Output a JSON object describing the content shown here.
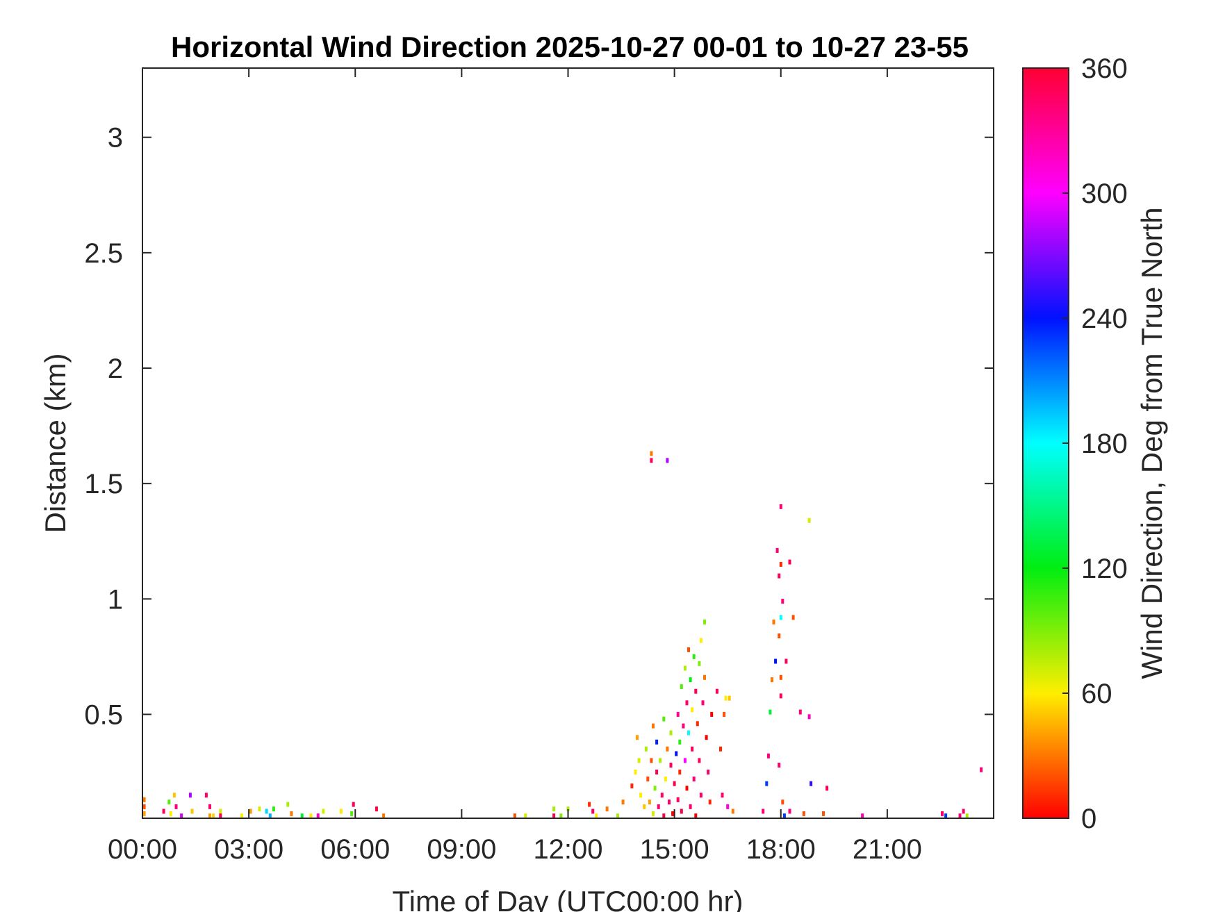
{
  "chart_data": {
    "type": "heatmap",
    "title": "Horizontal Wind Direction 2025-10-27 00-01 to 10-27 23-55",
    "xlabel": "Time of Day (UTC00:00 hr)",
    "ylabel": "Distance (km)",
    "colorbar_label": "Wind Direction, Deg from True North",
    "xlim": [
      0,
      24
    ],
    "ylim": [
      0.05,
      3.3
    ],
    "clim": [
      0,
      360
    ],
    "x_unit": "hours UTC",
    "y_unit": "km",
    "colormap": "hsv",
    "grid": false,
    "x_ticks": [
      {
        "value": 0,
        "label": "00:00"
      },
      {
        "value": 3,
        "label": "03:00"
      },
      {
        "value": 6,
        "label": "06:00"
      },
      {
        "value": 9,
        "label": "09:00"
      },
      {
        "value": 12,
        "label": "12:00"
      },
      {
        "value": 15,
        "label": "15:00"
      },
      {
        "value": 18,
        "label": "18:00"
      },
      {
        "value": 21,
        "label": "21:00"
      }
    ],
    "y_ticks": [
      {
        "value": 0.5,
        "label": "0.5"
      },
      {
        "value": 1,
        "label": "1"
      },
      {
        "value": 1.5,
        "label": "1.5"
      },
      {
        "value": 2,
        "label": "2"
      },
      {
        "value": 2.5,
        "label": "2.5"
      },
      {
        "value": 3,
        "label": "3"
      }
    ],
    "colorbar_ticks": [
      {
        "value": 0,
        "label": "0"
      },
      {
        "value": 60,
        "label": "60"
      },
      {
        "value": 120,
        "label": "120"
      },
      {
        "value": 180,
        "label": "180"
      },
      {
        "value": 240,
        "label": "240"
      },
      {
        "value": 300,
        "label": "300"
      },
      {
        "value": 360,
        "label": "360"
      }
    ],
    "colorbar_stops": [
      {
        "value": 0,
        "color": "#ff0000"
      },
      {
        "value": 60,
        "color": "#ffee00"
      },
      {
        "value": 120,
        "color": "#00ee11"
      },
      {
        "value": 180,
        "color": "#00ffff"
      },
      {
        "value": 240,
        "color": "#0011ff"
      },
      {
        "value": 300,
        "color": "#ff00ff"
      },
      {
        "value": 360,
        "color": "#ff0033"
      }
    ],
    "points": [
      [
        0.05,
        0.13,
        30
      ],
      [
        0.05,
        0.1,
        20
      ],
      [
        0.05,
        0.07,
        40
      ],
      [
        0.6,
        0.08,
        350
      ],
      [
        0.75,
        0.12,
        100
      ],
      [
        0.8,
        0.07,
        60
      ],
      [
        0.9,
        0.15,
        50
      ],
      [
        0.95,
        0.1,
        340
      ],
      [
        1.1,
        0.06,
        290
      ],
      [
        1.35,
        0.15,
        280
      ],
      [
        1.4,
        0.08,
        50
      ],
      [
        1.8,
        0.15,
        345
      ],
      [
        1.9,
        0.1,
        345
      ],
      [
        1.9,
        0.06,
        40
      ],
      [
        2.0,
        0.06,
        55
      ],
      [
        2.2,
        0.08,
        70
      ],
      [
        2.2,
        0.06,
        350
      ],
      [
        2.8,
        0.06,
        60
      ],
      [
        3.05,
        0.08,
        40
      ],
      [
        3.3,
        0.09,
        70
      ],
      [
        3.5,
        0.08,
        190
      ],
      [
        3.6,
        0.06,
        200
      ],
      [
        3.7,
        0.09,
        110
      ],
      [
        4.1,
        0.11,
        80
      ],
      [
        4.2,
        0.07,
        30
      ],
      [
        4.5,
        0.06,
        130
      ],
      [
        4.75,
        0.06,
        60
      ],
      [
        4.95,
        0.06,
        320
      ],
      [
        5.1,
        0.08,
        70
      ],
      [
        5.6,
        0.08,
        60
      ],
      [
        5.9,
        0.07,
        100
      ],
      [
        5.95,
        0.11,
        350
      ],
      [
        6.6,
        0.09,
        355
      ],
      [
        6.8,
        0.06,
        30
      ],
      [
        10.5,
        0.06,
        20
      ],
      [
        10.8,
        0.06,
        70
      ],
      [
        11.6,
        0.09,
        80
      ],
      [
        11.6,
        0.06,
        350
      ],
      [
        11.8,
        0.06,
        90
      ],
      [
        12.0,
        0.09,
        80
      ],
      [
        12.6,
        0.11,
        10
      ],
      [
        12.7,
        0.08,
        350
      ],
      [
        12.8,
        0.06,
        60
      ],
      [
        13.1,
        0.09,
        30
      ],
      [
        13.4,
        0.06,
        80
      ],
      [
        13.55,
        0.12,
        30
      ],
      [
        13.8,
        0.19,
        10
      ],
      [
        13.9,
        0.25,
        60
      ],
      [
        13.95,
        0.4,
        40
      ],
      [
        14.0,
        0.3,
        70
      ],
      [
        14.05,
        0.15,
        60
      ],
      [
        14.15,
        0.1,
        50
      ],
      [
        14.2,
        0.35,
        80
      ],
      [
        14.25,
        0.22,
        20
      ],
      [
        14.3,
        0.12,
        40
      ],
      [
        14.35,
        0.3,
        20
      ],
      [
        14.4,
        0.45,
        30
      ],
      [
        14.4,
        0.07,
        70
      ],
      [
        14.45,
        0.18,
        90
      ],
      [
        14.5,
        0.38,
        235
      ],
      [
        14.5,
        0.25,
        350
      ],
      [
        14.55,
        0.1,
        340
      ],
      [
        14.6,
        0.3,
        80
      ],
      [
        14.65,
        0.15,
        345
      ],
      [
        14.7,
        0.48,
        100
      ],
      [
        14.7,
        0.06,
        355
      ],
      [
        14.75,
        0.22,
        60
      ],
      [
        14.8,
        0.35,
        30
      ],
      [
        14.85,
        0.12,
        345
      ],
      [
        14.9,
        0.28,
        350
      ],
      [
        14.9,
        0.42,
        80
      ],
      [
        14.95,
        0.07,
        0
      ],
      [
        15.0,
        0.2,
        355
      ],
      [
        15.05,
        0.33,
        240
      ],
      [
        15.1,
        0.5,
        330
      ],
      [
        15.1,
        0.13,
        345
      ],
      [
        15.15,
        0.25,
        10
      ],
      [
        15.15,
        0.38,
        110
      ],
      [
        15.2,
        0.62,
        100
      ],
      [
        15.2,
        0.08,
        355
      ],
      [
        15.25,
        0.45,
        340
      ],
      [
        15.3,
        0.7,
        80
      ],
      [
        15.3,
        0.3,
        300
      ],
      [
        15.35,
        0.55,
        345
      ],
      [
        15.35,
        0.18,
        0
      ],
      [
        15.4,
        0.78,
        20
      ],
      [
        15.4,
        0.42,
        180
      ],
      [
        15.45,
        0.65,
        120
      ],
      [
        15.45,
        0.1,
        345
      ],
      [
        15.5,
        0.52,
        60
      ],
      [
        15.5,
        0.35,
        350
      ],
      [
        15.55,
        0.75,
        110
      ],
      [
        15.55,
        0.22,
        340
      ],
      [
        15.6,
        0.6,
        350
      ],
      [
        15.6,
        0.06,
        0
      ],
      [
        15.65,
        0.46,
        10
      ],
      [
        15.7,
        0.72,
        90
      ],
      [
        15.7,
        0.3,
        350
      ],
      [
        15.75,
        0.82,
        60
      ],
      [
        15.75,
        0.15,
        345
      ],
      [
        15.8,
        0.55,
        340
      ],
      [
        15.85,
        0.9,
        90
      ],
      [
        15.85,
        0.66,
        30
      ],
      [
        15.9,
        0.4,
        0
      ],
      [
        15.95,
        0.25,
        345
      ],
      [
        16.0,
        0.12,
        10
      ],
      [
        16.05,
        0.5,
        0
      ],
      [
        16.2,
        0.6,
        350
      ],
      [
        16.3,
        0.35,
        10
      ],
      [
        16.35,
        0.15,
        345
      ],
      [
        16.4,
        0.5,
        20
      ],
      [
        16.45,
        0.57,
        60
      ],
      [
        16.55,
        0.57,
        50
      ],
      [
        16.5,
        0.1,
        310
      ],
      [
        16.65,
        0.08,
        30
      ],
      [
        14.35,
        1.63,
        30
      ],
      [
        14.35,
        1.6,
        350
      ],
      [
        14.8,
        1.6,
        280
      ],
      [
        17.5,
        0.08,
        340
      ],
      [
        17.6,
        0.2,
        230
      ],
      [
        17.65,
        0.32,
        340
      ],
      [
        17.7,
        0.51,
        130
      ],
      [
        17.75,
        0.65,
        30
      ],
      [
        17.8,
        0.9,
        30
      ],
      [
        17.85,
        0.73,
        240
      ],
      [
        17.9,
        1.21,
        340
      ],
      [
        17.95,
        0.84,
        20
      ],
      [
        17.95,
        1.1,
        350
      ],
      [
        17.95,
        0.28,
        345
      ],
      [
        18.0,
        1.4,
        340
      ],
      [
        18.0,
        1.15,
        10
      ],
      [
        18.0,
        0.92,
        180
      ],
      [
        18.0,
        0.66,
        20
      ],
      [
        18.0,
        0.58,
        350
      ],
      [
        18.05,
        0.99,
        340
      ],
      [
        18.05,
        0.12,
        20
      ],
      [
        18.1,
        0.06,
        230
      ],
      [
        18.15,
        0.73,
        350
      ],
      [
        18.25,
        1.16,
        350
      ],
      [
        18.25,
        0.08,
        340
      ],
      [
        18.35,
        0.92,
        20
      ],
      [
        18.55,
        0.51,
        340
      ],
      [
        18.65,
        0.07,
        20
      ],
      [
        18.8,
        1.34,
        70
      ],
      [
        18.8,
        0.49,
        320
      ],
      [
        18.85,
        0.2,
        250
      ],
      [
        19.2,
        0.07,
        20
      ],
      [
        19.3,
        0.18,
        350
      ],
      [
        20.3,
        0.06,
        320
      ],
      [
        22.55,
        0.07,
        345
      ],
      [
        22.65,
        0.06,
        230
      ],
      [
        23.05,
        0.06,
        340
      ],
      [
        23.15,
        0.08,
        345
      ],
      [
        23.25,
        0.06,
        80
      ],
      [
        23.65,
        0.26,
        340
      ]
    ]
  }
}
